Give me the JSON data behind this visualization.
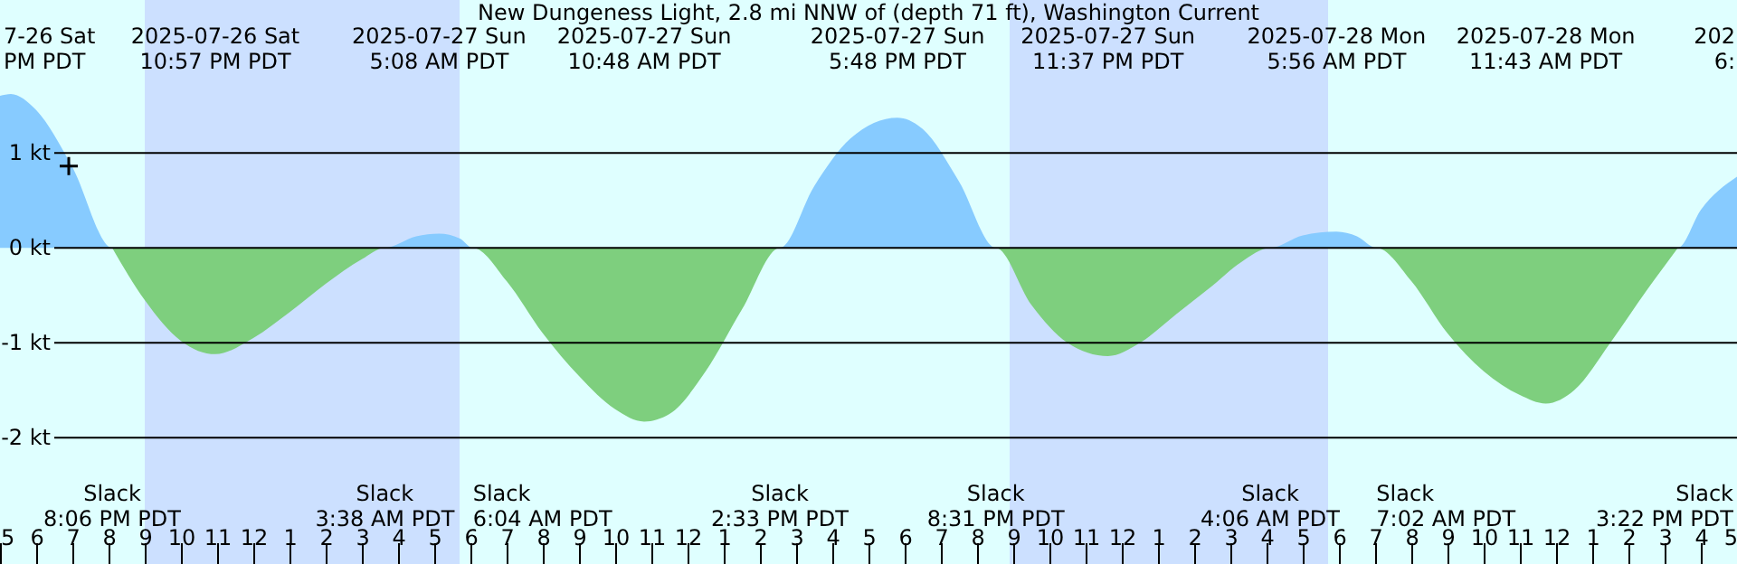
{
  "chart_data": {
    "type": "area",
    "title": "New Dungeness Light, 2.8 mi NNW of (depth 71 ft), Washington Current",
    "xlim": [
      "2025-07-26T17:00",
      "2025-07-28T17:00"
    ],
    "ylim": [
      -3.33,
      2.61
    ],
    "xticks": [
      {
        "value": "2025-07-26T17:00",
        "label": "5"
      },
      {
        "value": "2025-07-26T18:00",
        "label": "6"
      },
      {
        "value": "2025-07-26T19:00",
        "label": "7"
      },
      {
        "value": "2025-07-26T20:00",
        "label": "8"
      },
      {
        "value": "2025-07-26T21:00",
        "label": "9"
      },
      {
        "value": "2025-07-26T22:00",
        "label": "10"
      },
      {
        "value": "2025-07-26T23:00",
        "label": "11"
      },
      {
        "value": "2025-07-27T00:00",
        "label": "12"
      },
      {
        "value": "2025-07-27T01:00",
        "label": "1"
      },
      {
        "value": "2025-07-27T02:00",
        "label": "2"
      },
      {
        "value": "2025-07-27T03:00",
        "label": "3"
      },
      {
        "value": "2025-07-27T04:00",
        "label": "4"
      },
      {
        "value": "2025-07-27T05:00",
        "label": "5"
      },
      {
        "value": "2025-07-27T06:00",
        "label": "6"
      },
      {
        "value": "2025-07-27T07:00",
        "label": "7"
      },
      {
        "value": "2025-07-27T08:00",
        "label": "8"
      },
      {
        "value": "2025-07-27T09:00",
        "label": "9"
      },
      {
        "value": "2025-07-27T10:00",
        "label": "10"
      },
      {
        "value": "2025-07-27T11:00",
        "label": "11"
      },
      {
        "value": "2025-07-27T12:00",
        "label": "12"
      },
      {
        "value": "2025-07-27T13:00",
        "label": "1"
      },
      {
        "value": "2025-07-27T14:00",
        "label": "2"
      },
      {
        "value": "2025-07-27T15:00",
        "label": "3"
      },
      {
        "value": "2025-07-27T16:00",
        "label": "4"
      },
      {
        "value": "2025-07-27T17:00",
        "label": "5"
      },
      {
        "value": "2025-07-27T18:00",
        "label": "6"
      },
      {
        "value": "2025-07-27T19:00",
        "label": "7"
      },
      {
        "value": "2025-07-27T20:00",
        "label": "8"
      },
      {
        "value": "2025-07-27T21:00",
        "label": "9"
      },
      {
        "value": "2025-07-27T22:00",
        "label": "10"
      },
      {
        "value": "2025-07-27T23:00",
        "label": "11"
      },
      {
        "value": "2025-07-28T00:00",
        "label": "12"
      },
      {
        "value": "2025-07-28T01:00",
        "label": "1"
      },
      {
        "value": "2025-07-28T02:00",
        "label": "2"
      },
      {
        "value": "2025-07-28T03:00",
        "label": "3"
      },
      {
        "value": "2025-07-28T04:00",
        "label": "4"
      },
      {
        "value": "2025-07-28T05:00",
        "label": "5"
      },
      {
        "value": "2025-07-28T06:00",
        "label": "6"
      },
      {
        "value": "2025-07-28T07:00",
        "label": "7"
      },
      {
        "value": "2025-07-28T08:00",
        "label": "8"
      },
      {
        "value": "2025-07-28T09:00",
        "label": "9"
      },
      {
        "value": "2025-07-28T10:00",
        "label": "10"
      },
      {
        "value": "2025-07-28T11:00",
        "label": "11"
      },
      {
        "value": "2025-07-28T12:00",
        "label": "12"
      },
      {
        "value": "2025-07-28T13:00",
        "label": "1"
      },
      {
        "value": "2025-07-28T14:00",
        "label": "2"
      },
      {
        "value": "2025-07-28T15:00",
        "label": "3"
      },
      {
        "value": "2025-07-28T16:00",
        "label": "4"
      },
      {
        "value": "2025-07-28T17:00",
        "label": "5"
      }
    ],
    "yticks": [
      {
        "value": 1,
        "label": "1 kt"
      },
      {
        "value": 0,
        "label": "0 kt"
      },
      {
        "value": -1,
        "label": "-1 kt"
      },
      {
        "value": -2,
        "label": "-2 kt"
      }
    ],
    "grid": "y",
    "series": [
      {
        "color": "#87cbff",
        "x": [
          "2025-07-26T17:00",
          "2025-07-26T17:18",
          "2025-07-26T18:00",
          "2025-07-26T19:00",
          "2025-07-26T20:06",
          "2025-07-27T03:38",
          "2025-07-27T04:30",
          "2025-07-27T05:08",
          "2025-07-27T05:42",
          "2025-07-27T06:04",
          "2025-07-27T14:33",
          "2025-07-27T15:30",
          "2025-07-27T16:30",
          "2025-07-27T17:48",
          "2025-07-27T18:30",
          "2025-07-27T19:30",
          "2025-07-27T20:31",
          "2025-07-28T04:06",
          "2025-07-28T05:00",
          "2025-07-28T05:56",
          "2025-07-28T06:30",
          "2025-07-28T07:02",
          "2025-07-28T15:22",
          "2025-07-28T16:00",
          "2025-07-28T17:00"
        ],
        "values": [
          1.6,
          1.62,
          1.45,
          0.85,
          0,
          0,
          0.12,
          0.15,
          0.1,
          0,
          0,
          0.65,
          1.15,
          1.37,
          1.25,
          0.7,
          0,
          0,
          0.13,
          0.17,
          0.12,
          0,
          0,
          0.4,
          0.75
        ]
      },
      {
        "color": "#7ecf7e",
        "x": [
          "2025-07-26T20:06",
          "2025-07-26T21:00",
          "2025-07-26T22:00",
          "2025-07-26T22:57",
          "2025-07-27T00:00",
          "2025-07-27T01:00",
          "2025-07-27T02:00",
          "2025-07-27T03:00",
          "2025-07-27T03:38",
          "2025-07-27T06:04",
          "2025-07-27T07:00",
          "2025-07-27T08:00",
          "2025-07-27T09:00",
          "2025-07-27T10:00",
          "2025-07-27T10:48",
          "2025-07-27T11:30",
          "2025-07-27T12:30",
          "2025-07-27T13:30",
          "2025-07-27T14:33",
          "2025-07-27T20:31",
          "2025-07-27T21:30",
          "2025-07-27T22:30",
          "2025-07-27T23:37",
          "2025-07-28T00:30",
          "2025-07-28T01:30",
          "2025-07-28T02:30",
          "2025-07-28T03:18",
          "2025-07-28T04:06",
          "2025-07-28T07:02",
          "2025-07-28T08:00",
          "2025-07-28T09:00",
          "2025-07-28T10:00",
          "2025-07-28T11:00",
          "2025-07-28T11:43",
          "2025-07-28T12:30",
          "2025-07-28T13:30",
          "2025-07-28T14:30",
          "2025-07-28T15:22"
        ],
        "values": [
          0,
          -0.55,
          -0.98,
          -1.12,
          -0.95,
          -0.68,
          -0.38,
          -0.12,
          0,
          0,
          -0.35,
          -0.9,
          -1.35,
          -1.7,
          -1.83,
          -1.75,
          -1.3,
          -0.65,
          0,
          0,
          -0.6,
          -1.0,
          -1.14,
          -1.0,
          -0.7,
          -0.4,
          -0.15,
          0,
          0,
          -0.35,
          -0.9,
          -1.3,
          -1.55,
          -1.64,
          -1.5,
          -1.0,
          -0.45,
          0
        ]
      },
      {
        "type": "scatter",
        "marker": "cross",
        "color": "#000000",
        "x": [
          "2025-07-26T18:54"
        ],
        "values": [
          0.86
        ]
      }
    ],
    "bands": [
      {
        "axis": "x",
        "from": "2025-07-26T21:00",
        "to": "2025-07-27T05:42",
        "color": "#cce0ff"
      },
      {
        "axis": "x",
        "from": "2025-07-27T20:54",
        "to": "2025-07-28T05:42",
        "color": "#cce0ff"
      }
    ],
    "annotations": [
      "7-26 Sat\nPM PDT",
      "2025-07-26 Sat\n10:57 PM PDT",
      "2025-07-27 Sun\n5:08 AM PDT",
      "2025-07-27 Sun\n10:48 AM PDT",
      "2025-07-27 Sun\n5:48 PM PDT",
      "2025-07-27 Sun\n11:37 PM PDT",
      "2025-07-28 Mon\n5:56 AM PDT",
      "2025-07-28 Mon\n11:43 AM PDT",
      "202\n6:",
      "Slack\n8:06 PM PDT",
      "Slack\n3:38 AM PDT",
      "Slack\n6:04 AM PDT",
      "Slack\n2:33 PM PDT",
      "Slack\n8:31 PM PDT",
      "Slack\n4:06 AM PDT",
      "Slack\n7:02 AM PDT",
      "Slack\n3:22 PM PDT"
    ]
  }
}
